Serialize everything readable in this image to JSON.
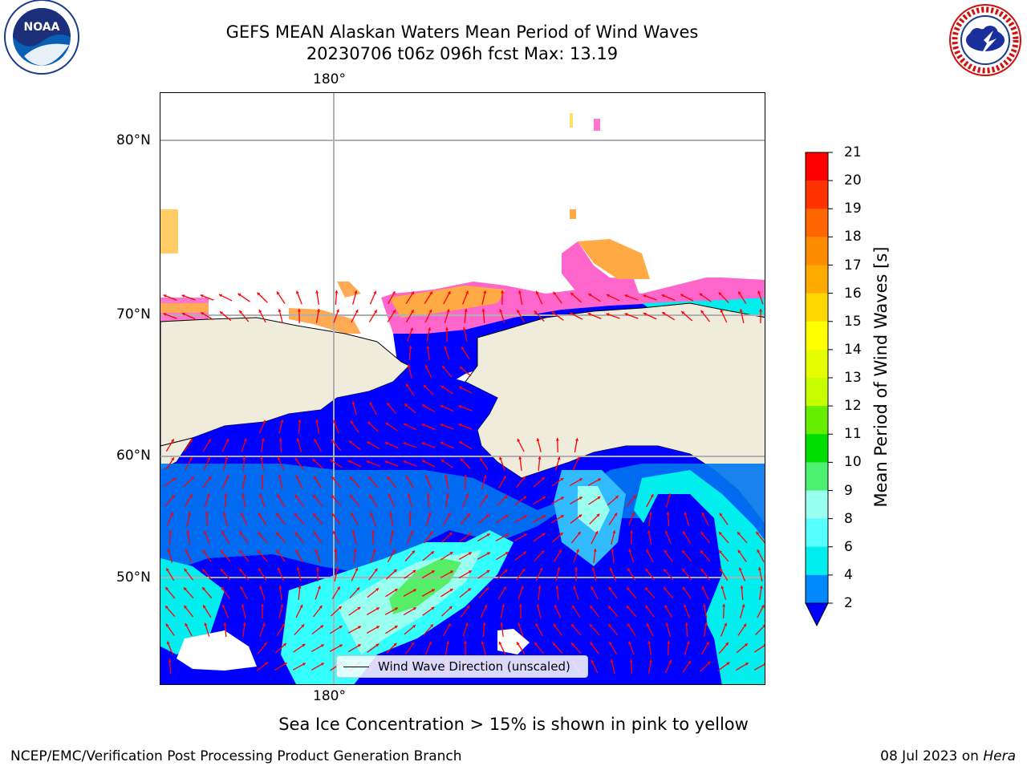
{
  "title": {
    "line1": "GEFS MEAN Alaskan Waters Mean Period of Wind Waves",
    "line2": "20230706 t06z 096h fcst   Max: 13.19"
  },
  "logos": {
    "left": "NOAA",
    "right": "NATIONAL WEATHER SERVICE"
  },
  "map": {
    "lon_label": "180°",
    "lat_labels": [
      "80°N",
      "70°N",
      "60°N",
      "50°N"
    ],
    "land_color": "#efecdc",
    "arrow_color": "#ff0000",
    "grid_color": "#b0b0b0",
    "legend_label": "Wind Wave Direction (unscaled)"
  },
  "colorbar": {
    "label": "Mean Period of Wind Waves [s]",
    "ticks": [
      "21",
      "20",
      "19",
      "18",
      "17",
      "16",
      "15",
      "14",
      "13",
      "12",
      "11",
      "10",
      "9",
      "8",
      "6",
      "4",
      "2"
    ],
    "colors": [
      "#ff0000",
      "#ff3300",
      "#ff6600",
      "#ff8c00",
      "#ffaa00",
      "#ffd700",
      "#ffff00",
      "#e6ff00",
      "#c8ff00",
      "#66ee00",
      "#00dd00",
      "#4df070",
      "#99ffee",
      "#55ffff",
      "#00eeee",
      "#0088ff"
    ],
    "under_color": "#0000ff"
  },
  "note": "Sea Ice Concentration > 15% is shown in pink to yellow",
  "footer": {
    "left": "NCEP/EMC/Verification Post Processing Product Generation Branch",
    "right_date": "08 Jul 2023 on ",
    "right_machine": "Hera"
  }
}
